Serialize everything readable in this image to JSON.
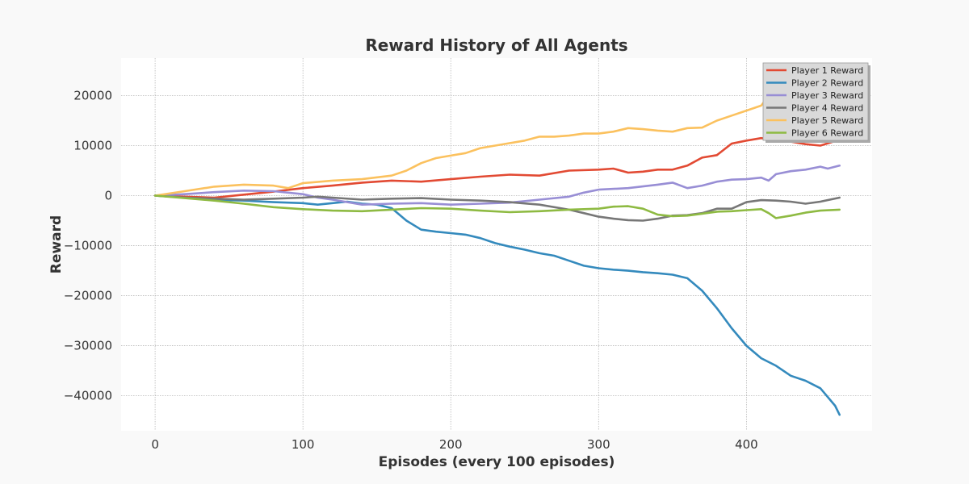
{
  "chart_data": {
    "type": "line",
    "title": "Reward History of All Agents",
    "xlabel": "Episodes (every 100 episodes)",
    "ylabel": "Reward",
    "xlim": [
      -23,
      485
    ],
    "ylim": [
      -47000,
      27500
    ],
    "xticks": [
      0,
      100,
      200,
      300,
      400
    ],
    "yticks": [
      -40000,
      -30000,
      -20000,
      -10000,
      0,
      10000,
      20000
    ],
    "grid": true,
    "legend_position": "top-right",
    "series": [
      {
        "name": "Player 1 Reward",
        "color": "#E24A33",
        "points": [
          [
            0,
            0
          ],
          [
            20,
            -200
          ],
          [
            40,
            -400
          ],
          [
            60,
            200
          ],
          [
            80,
            800
          ],
          [
            100,
            1500
          ],
          [
            120,
            2000
          ],
          [
            140,
            2600
          ],
          [
            160,
            3000
          ],
          [
            180,
            2800
          ],
          [
            200,
            3300
          ],
          [
            220,
            3800
          ],
          [
            240,
            4200
          ],
          [
            260,
            4000
          ],
          [
            280,
            5000
          ],
          [
            300,
            5200
          ],
          [
            310,
            5400
          ],
          [
            320,
            4600
          ],
          [
            330,
            4800
          ],
          [
            340,
            5200
          ],
          [
            350,
            5200
          ],
          [
            360,
            6000
          ],
          [
            370,
            7600
          ],
          [
            380,
            8100
          ],
          [
            390,
            10400
          ],
          [
            400,
            11000
          ],
          [
            410,
            11500
          ],
          [
            420,
            11000
          ],
          [
            430,
            10800
          ],
          [
            440,
            10300
          ],
          [
            450,
            10000
          ],
          [
            460,
            10900
          ],
          [
            463,
            11000
          ]
        ]
      },
      {
        "name": "Player 2 Reward",
        "color": "#348ABD",
        "points": [
          [
            0,
            0
          ],
          [
            20,
            -400
          ],
          [
            40,
            -800
          ],
          [
            60,
            -1000
          ],
          [
            80,
            -1300
          ],
          [
            100,
            -1500
          ],
          [
            110,
            -1800
          ],
          [
            120,
            -1500
          ],
          [
            130,
            -1200
          ],
          [
            140,
            -1600
          ],
          [
            150,
            -1800
          ],
          [
            160,
            -2500
          ],
          [
            170,
            -5000
          ],
          [
            180,
            -6800
          ],
          [
            190,
            -7200
          ],
          [
            200,
            -7500
          ],
          [
            210,
            -7800
          ],
          [
            220,
            -8500
          ],
          [
            230,
            -9500
          ],
          [
            240,
            -10200
          ],
          [
            250,
            -10800
          ],
          [
            260,
            -11500
          ],
          [
            270,
            -12000
          ],
          [
            280,
            -13000
          ],
          [
            290,
            -14000
          ],
          [
            300,
            -14500
          ],
          [
            310,
            -14800
          ],
          [
            320,
            -15000
          ],
          [
            330,
            -15300
          ],
          [
            340,
            -15500
          ],
          [
            350,
            -15800
          ],
          [
            360,
            -16500
          ],
          [
            370,
            -19000
          ],
          [
            380,
            -22500
          ],
          [
            390,
            -26500
          ],
          [
            400,
            -30000
          ],
          [
            410,
            -32500
          ],
          [
            420,
            -34000
          ],
          [
            430,
            -36000
          ],
          [
            440,
            -37000
          ],
          [
            450,
            -38500
          ],
          [
            460,
            -42000
          ],
          [
            463,
            -43800
          ]
        ]
      },
      {
        "name": "Player 3 Reward",
        "color": "#988ED5",
        "points": [
          [
            0,
            0
          ],
          [
            20,
            300
          ],
          [
            40,
            700
          ],
          [
            60,
            1000
          ],
          [
            80,
            900
          ],
          [
            100,
            300
          ],
          [
            110,
            -400
          ],
          [
            120,
            -800
          ],
          [
            140,
            -1800
          ],
          [
            160,
            -1600
          ],
          [
            180,
            -1500
          ],
          [
            200,
            -1800
          ],
          [
            220,
            -1600
          ],
          [
            240,
            -1400
          ],
          [
            260,
            -800
          ],
          [
            280,
            -200
          ],
          [
            290,
            600
          ],
          [
            300,
            1200
          ],
          [
            320,
            1500
          ],
          [
            340,
            2200
          ],
          [
            350,
            2600
          ],
          [
            360,
            1500
          ],
          [
            370,
            2000
          ],
          [
            380,
            2800
          ],
          [
            390,
            3200
          ],
          [
            400,
            3300
          ],
          [
            410,
            3600
          ],
          [
            415,
            3000
          ],
          [
            420,
            4300
          ],
          [
            430,
            4900
          ],
          [
            440,
            5200
          ],
          [
            450,
            5800
          ],
          [
            455,
            5400
          ],
          [
            463,
            6000
          ]
        ]
      },
      {
        "name": "Player 4 Reward",
        "color": "#777777",
        "points": [
          [
            0,
            0
          ],
          [
            20,
            -400
          ],
          [
            40,
            -600
          ],
          [
            60,
            -800
          ],
          [
            80,
            -600
          ],
          [
            100,
            -400
          ],
          [
            110,
            -200
          ],
          [
            120,
            -400
          ],
          [
            140,
            -800
          ],
          [
            160,
            -600
          ],
          [
            180,
            -500
          ],
          [
            200,
            -800
          ],
          [
            220,
            -1000
          ],
          [
            240,
            -1300
          ],
          [
            260,
            -1800
          ],
          [
            280,
            -2800
          ],
          [
            290,
            -3500
          ],
          [
            300,
            -4200
          ],
          [
            310,
            -4600
          ],
          [
            320,
            -4900
          ],
          [
            330,
            -5000
          ],
          [
            340,
            -4600
          ],
          [
            350,
            -4000
          ],
          [
            360,
            -3900
          ],
          [
            370,
            -3500
          ],
          [
            380,
            -2600
          ],
          [
            390,
            -2600
          ],
          [
            400,
            -1300
          ],
          [
            410,
            -900
          ],
          [
            420,
            -1000
          ],
          [
            430,
            -1200
          ],
          [
            440,
            -1600
          ],
          [
            450,
            -1200
          ],
          [
            463,
            -400
          ]
        ]
      },
      {
        "name": "Player 5 Reward",
        "color": "#FBC15E",
        "points": [
          [
            0,
            0
          ],
          [
            20,
            900
          ],
          [
            40,
            1800
          ],
          [
            60,
            2200
          ],
          [
            80,
            2000
          ],
          [
            90,
            1500
          ],
          [
            100,
            2500
          ],
          [
            120,
            3000
          ],
          [
            140,
            3300
          ],
          [
            160,
            4000
          ],
          [
            170,
            5000
          ],
          [
            180,
            6500
          ],
          [
            190,
            7500
          ],
          [
            200,
            8000
          ],
          [
            210,
            8500
          ],
          [
            220,
            9500
          ],
          [
            230,
            10000
          ],
          [
            240,
            10500
          ],
          [
            250,
            11000
          ],
          [
            260,
            11800
          ],
          [
            270,
            11800
          ],
          [
            280,
            12000
          ],
          [
            290,
            12400
          ],
          [
            300,
            12400
          ],
          [
            310,
            12800
          ],
          [
            320,
            13500
          ],
          [
            330,
            13300
          ],
          [
            340,
            13000
          ],
          [
            350,
            12800
          ],
          [
            360,
            13500
          ],
          [
            370,
            13600
          ],
          [
            380,
            15000
          ],
          [
            390,
            16000
          ],
          [
            400,
            17000
          ],
          [
            410,
            18000
          ],
          [
            415,
            20000
          ]
        ]
      },
      {
        "name": "Player 6 Reward",
        "color": "#8EBA42",
        "points": [
          [
            0,
            0
          ],
          [
            20,
            -500
          ],
          [
            40,
            -1000
          ],
          [
            60,
            -1600
          ],
          [
            80,
            -2300
          ],
          [
            100,
            -2700
          ],
          [
            120,
            -3000
          ],
          [
            140,
            -3100
          ],
          [
            160,
            -2800
          ],
          [
            180,
            -2500
          ],
          [
            200,
            -2600
          ],
          [
            220,
            -3000
          ],
          [
            240,
            -3300
          ],
          [
            260,
            -3100
          ],
          [
            280,
            -2800
          ],
          [
            300,
            -2600
          ],
          [
            310,
            -2200
          ],
          [
            320,
            -2100
          ],
          [
            330,
            -2600
          ],
          [
            340,
            -3800
          ],
          [
            350,
            -4100
          ],
          [
            360,
            -4000
          ],
          [
            370,
            -3600
          ],
          [
            380,
            -3200
          ],
          [
            390,
            -3100
          ],
          [
            400,
            -2900
          ],
          [
            410,
            -2700
          ],
          [
            415,
            -3500
          ],
          [
            420,
            -4500
          ],
          [
            430,
            -4000
          ],
          [
            440,
            -3400
          ],
          [
            450,
            -3000
          ],
          [
            463,
            -2800
          ]
        ]
      }
    ]
  }
}
